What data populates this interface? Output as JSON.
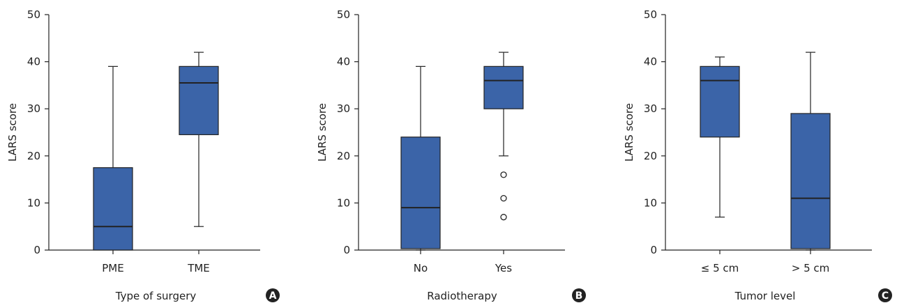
{
  "colors": {
    "box_fill": "#3b64a8",
    "stroke": "#222222",
    "outlier_fill": "#ffffff",
    "badge": "#222222"
  },
  "chart_data": [
    {
      "type": "boxplot",
      "panel_label": "A",
      "xlabel": "Type of surgery",
      "ylabel": "LARS score",
      "ylim": [
        0,
        50
      ],
      "yticks": [
        0,
        10,
        20,
        30,
        40,
        50
      ],
      "grid": false,
      "categories": [
        "PME",
        "TME"
      ],
      "boxes": [
        {
          "min": 0,
          "q1": 0,
          "median": 5,
          "q3": 17.5,
          "max": 39,
          "outliers": []
        },
        {
          "min": 5,
          "q1": 24.5,
          "median": 35.5,
          "q3": 39,
          "max": 42,
          "outliers": []
        }
      ]
    },
    {
      "type": "boxplot",
      "panel_label": "B",
      "xlabel": "Radiotherapy",
      "ylabel": "LARS score",
      "ylim": [
        0,
        50
      ],
      "yticks": [
        0,
        10,
        20,
        30,
        40,
        50
      ],
      "grid": false,
      "categories": [
        "No",
        "Yes"
      ],
      "boxes": [
        {
          "min": 0,
          "q1": 0.3,
          "median": 9,
          "q3": 24,
          "max": 39,
          "outliers": []
        },
        {
          "min": 20,
          "q1": 30,
          "median": 36,
          "q3": 39,
          "max": 42,
          "outliers": [
            16,
            11,
            7
          ]
        }
      ]
    },
    {
      "type": "boxplot",
      "panel_label": "C",
      "xlabel": "Tumor level",
      "ylabel": "LARS score",
      "ylim": [
        0,
        50
      ],
      "yticks": [
        0,
        10,
        20,
        30,
        40,
        50
      ],
      "grid": false,
      "categories": [
        "≤ 5 cm",
        "> 5 cm"
      ],
      "boxes": [
        {
          "min": 7,
          "q1": 24,
          "median": 36,
          "q3": 39,
          "max": 41,
          "outliers": []
        },
        {
          "min": 0,
          "q1": 0.3,
          "median": 11,
          "q3": 29,
          "max": 42,
          "outliers": []
        }
      ]
    }
  ]
}
